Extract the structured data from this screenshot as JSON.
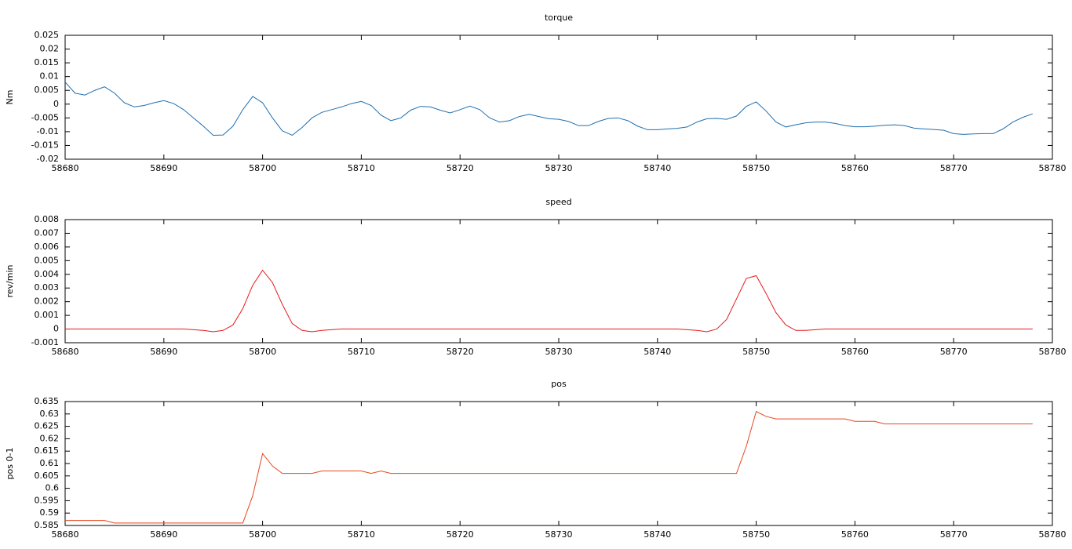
{
  "chart_data": [
    {
      "type": "line",
      "title": "torque",
      "ylabel": "Nm",
      "color": "#1f6fb0",
      "x": [
        58680,
        58681,
        58682,
        58683,
        58684,
        58685,
        58686,
        58687,
        58688,
        58689,
        58690,
        58691,
        58692,
        58693,
        58694,
        58695,
        58696,
        58697,
        58698,
        58699,
        58700,
        58701,
        58702,
        58703,
        58704,
        58705,
        58706,
        58707,
        58708,
        58709,
        58710,
        58711,
        58712,
        58713,
        58714,
        58715,
        58716,
        58717,
        58718,
        58719,
        58720,
        58721,
        58722,
        58723,
        58724,
        58725,
        58726,
        58727,
        58728,
        58729,
        58730,
        58731,
        58732,
        58733,
        58734,
        58735,
        58736,
        58737,
        58738,
        58739,
        58740,
        58741,
        58742,
        58743,
        58744,
        58745,
        58746,
        58747,
        58748,
        58749,
        58750,
        58751,
        58752,
        58753,
        58754,
        58755,
        58756,
        58757,
        58758,
        58759,
        58760,
        58761,
        58762,
        58763,
        58764,
        58765,
        58766,
        58767,
        58768,
        58769,
        58770,
        58771,
        58772,
        58773,
        58774,
        58775,
        58776,
        58777,
        58778
      ],
      "values": [
        0.008,
        0.004,
        0.0033,
        0.005,
        0.0063,
        0.004,
        0.0005,
        -0.001,
        -0.0005,
        0.0005,
        0.0013,
        0.0002,
        -0.002,
        -0.005,
        -0.008,
        -0.0113,
        -0.0112,
        -0.008,
        -0.002,
        0.0028,
        0.0005,
        -0.005,
        -0.0097,
        -0.0113,
        -0.0085,
        -0.005,
        -0.003,
        -0.002,
        -0.001,
        0.0002,
        0.001,
        -0.0005,
        -0.004,
        -0.006,
        -0.005,
        -0.0022,
        -0.0008,
        -0.001,
        -0.0022,
        -0.0032,
        -0.002,
        -0.0007,
        -0.002,
        -0.005,
        -0.0065,
        -0.006,
        -0.0045,
        -0.0037,
        -0.0045,
        -0.0053,
        -0.0055,
        -0.0063,
        -0.0078,
        -0.0078,
        -0.0063,
        -0.0052,
        -0.005,
        -0.006,
        -0.008,
        -0.0093,
        -0.0093,
        -0.009,
        -0.0088,
        -0.0083,
        -0.0065,
        -0.0053,
        -0.0052,
        -0.0055,
        -0.0043,
        -0.0008,
        0.0008,
        -0.0025,
        -0.0065,
        -0.0083,
        -0.0075,
        -0.0068,
        -0.0065,
        -0.0065,
        -0.007,
        -0.0078,
        -0.0082,
        -0.0082,
        -0.008,
        -0.0077,
        -0.0075,
        -0.0078,
        -0.0087,
        -0.009,
        -0.0092,
        -0.0095,
        -0.0107,
        -0.011,
        -0.0108,
        -0.0107,
        -0.0107,
        -0.009,
        -0.0065,
        -0.0048,
        -0.0035
      ],
      "xlim": [
        58680,
        58780
      ],
      "xticks": [
        58680,
        58690,
        58700,
        58710,
        58720,
        58730,
        58740,
        58750,
        58760,
        58770,
        58780
      ],
      "ylim": [
        -0.02,
        0.025
      ],
      "yticks": [
        -0.02,
        -0.015,
        -0.01,
        -0.005,
        0,
        0.005,
        0.01,
        0.015,
        0.02,
        0.025
      ]
    },
    {
      "type": "line",
      "title": "speed",
      "ylabel": "rev/min",
      "color": "#e41a1c",
      "x": [
        58680,
        58681,
        58682,
        58683,
        58684,
        58685,
        58686,
        58687,
        58688,
        58689,
        58690,
        58691,
        58692,
        58693,
        58694,
        58695,
        58696,
        58697,
        58698,
        58699,
        58700,
        58701,
        58702,
        58703,
        58704,
        58705,
        58706,
        58707,
        58708,
        58709,
        58710,
        58711,
        58712,
        58713,
        58714,
        58715,
        58716,
        58717,
        58718,
        58719,
        58720,
        58721,
        58722,
        58723,
        58724,
        58725,
        58726,
        58727,
        58728,
        58729,
        58730,
        58731,
        58732,
        58733,
        58734,
        58735,
        58736,
        58737,
        58738,
        58739,
        58740,
        58741,
        58742,
        58743,
        58744,
        58745,
        58746,
        58747,
        58748,
        58749,
        58750,
        58751,
        58752,
        58753,
        58754,
        58755,
        58756,
        58757,
        58758,
        58759,
        58760,
        58761,
        58762,
        58763,
        58764,
        58765,
        58766,
        58767,
        58768,
        58769,
        58770,
        58771,
        58772,
        58773,
        58774,
        58775,
        58776,
        58777,
        58778
      ],
      "values": [
        0,
        0,
        0,
        0,
        0,
        0,
        0,
        0,
        0,
        0,
        0,
        0,
        0,
        -5e-05,
        -0.0001,
        -0.0002,
        -0.0001,
        0.0003,
        0.0015,
        0.0032,
        0.0043,
        0.0034,
        0.0018,
        0.0004,
        -0.0001,
        -0.0002,
        -0.0001,
        -5e-05,
        0,
        0,
        0,
        0,
        0,
        0,
        0,
        0,
        0,
        0,
        0,
        0,
        0,
        0,
        0,
        0,
        0,
        0,
        0,
        0,
        0,
        0,
        0,
        0,
        0,
        0,
        0,
        0,
        0,
        0,
        0,
        0,
        0,
        0,
        0,
        -5e-05,
        -0.0001,
        -0.0002,
        0,
        0.0007,
        0.0022,
        0.0037,
        0.0039,
        0.0026,
        0.0012,
        0.0003,
        -0.0001,
        -0.0001,
        -5e-05,
        0,
        0,
        0,
        0,
        0,
        0,
        0,
        0,
        0,
        0,
        0,
        0,
        0,
        0,
        0,
        0,
        0,
        0,
        0,
        0,
        0,
        0
      ],
      "xlim": [
        58680,
        58780
      ],
      "xticks": [
        58680,
        58690,
        58700,
        58710,
        58720,
        58730,
        58740,
        58750,
        58760,
        58770,
        58780
      ],
      "ylim": [
        -0.001,
        0.008
      ],
      "yticks": [
        -0.001,
        0,
        0.001,
        0.002,
        0.003,
        0.004,
        0.005,
        0.006,
        0.007,
        0.008
      ]
    },
    {
      "type": "line",
      "title": "pos",
      "ylabel": "pos 0-1",
      "color": "#e8461c",
      "x": [
        58680,
        58681,
        58682,
        58683,
        58684,
        58685,
        58686,
        58687,
        58688,
        58689,
        58690,
        58691,
        58692,
        58693,
        58694,
        58695,
        58696,
        58697,
        58698,
        58699,
        58700,
        58701,
        58702,
        58703,
        58704,
        58705,
        58706,
        58707,
        58708,
        58709,
        58710,
        58711,
        58712,
        58713,
        58714,
        58715,
        58716,
        58717,
        58718,
        58719,
        58720,
        58721,
        58722,
        58723,
        58724,
        58725,
        58726,
        58727,
        58728,
        58729,
        58730,
        58731,
        58732,
        58733,
        58734,
        58735,
        58736,
        58737,
        58738,
        58739,
        58740,
        58741,
        58742,
        58743,
        58744,
        58745,
        58746,
        58747,
        58748,
        58749,
        58750,
        58751,
        58752,
        58753,
        58754,
        58755,
        58756,
        58757,
        58758,
        58759,
        58760,
        58761,
        58762,
        58763,
        58764,
        58765,
        58766,
        58767,
        58768,
        58769,
        58770,
        58771,
        58772,
        58773,
        58774,
        58775,
        58776,
        58777,
        58778
      ],
      "values": [
        0.587,
        0.587,
        0.587,
        0.587,
        0.587,
        0.586,
        0.586,
        0.586,
        0.586,
        0.586,
        0.586,
        0.586,
        0.586,
        0.586,
        0.586,
        0.586,
        0.586,
        0.586,
        0.586,
        0.597,
        0.614,
        0.609,
        0.606,
        0.606,
        0.606,
        0.606,
        0.607,
        0.607,
        0.607,
        0.607,
        0.607,
        0.606,
        0.607,
        0.606,
        0.606,
        0.606,
        0.606,
        0.606,
        0.606,
        0.606,
        0.606,
        0.606,
        0.606,
        0.606,
        0.606,
        0.606,
        0.606,
        0.606,
        0.606,
        0.606,
        0.606,
        0.606,
        0.606,
        0.606,
        0.606,
        0.606,
        0.606,
        0.606,
        0.606,
        0.606,
        0.606,
        0.606,
        0.606,
        0.606,
        0.606,
        0.606,
        0.606,
        0.606,
        0.606,
        0.617,
        0.631,
        0.629,
        0.628,
        0.628,
        0.628,
        0.628,
        0.628,
        0.628,
        0.628,
        0.628,
        0.627,
        0.627,
        0.627,
        0.626,
        0.626,
        0.626,
        0.626,
        0.626,
        0.626,
        0.626,
        0.626,
        0.626,
        0.626,
        0.626,
        0.626,
        0.626,
        0.626,
        0.626,
        0.626
      ],
      "xlim": [
        58680,
        58780
      ],
      "xticks": [
        58680,
        58690,
        58700,
        58710,
        58720,
        58730,
        58740,
        58750,
        58760,
        58770,
        58780
      ],
      "ylim": [
        0.585,
        0.635
      ],
      "yticks": [
        0.585,
        0.59,
        0.595,
        0.6,
        0.605,
        0.61,
        0.615,
        0.62,
        0.625,
        0.63,
        0.635
      ]
    }
  ]
}
